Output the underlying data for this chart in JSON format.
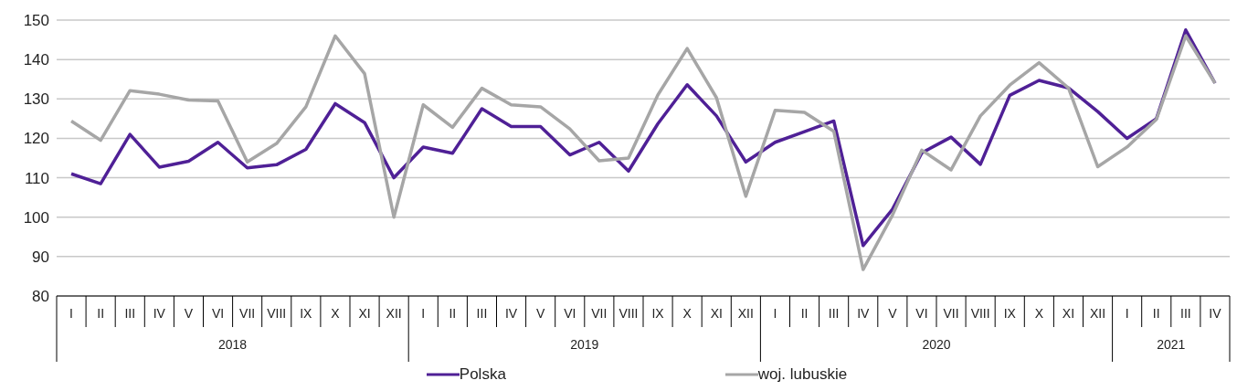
{
  "chart_data": {
    "type": "line",
    "categories": [
      "I",
      "II",
      "III",
      "IV",
      "V",
      "VI",
      "VII",
      "VIII",
      "IX",
      "X",
      "XI",
      "XII",
      "I",
      "II",
      "III",
      "IV",
      "V",
      "VI",
      "VII",
      "VIII",
      "IX",
      "X",
      "XI",
      "XII",
      "I",
      "II",
      "III",
      "IV",
      "V",
      "VI",
      "VII",
      "VIII",
      "IX",
      "X",
      "XI",
      "XII",
      "I",
      "II",
      "III",
      "IV"
    ],
    "annotations": [
      "2018",
      "2019",
      "2020",
      "2021"
    ],
    "series": [
      {
        "name": "Polska",
        "color": "#4f2096",
        "values": [
          111,
          108.5,
          121,
          112.7,
          114.2,
          119,
          112.5,
          113.3,
          117.2,
          128.8,
          124,
          110,
          117.8,
          116.2,
          127.5,
          123,
          123,
          115.8,
          119,
          111.7,
          123.7,
          133.6,
          125.7,
          114,
          119,
          121.7,
          124.4,
          92.8,
          102,
          116.3,
          120.3,
          113.4,
          130.9,
          134.7,
          132.8,
          126.8,
          120,
          125,
          147.5,
          134
        ]
      },
      {
        "name": "woj. lubuskie",
        "color": "#a6a6a6",
        "values": [
          124.4,
          119.5,
          132.1,
          131.2,
          129.7,
          129.5,
          114,
          118.7,
          128,
          146,
          136.4,
          100,
          128.5,
          122.8,
          132.7,
          128.5,
          128,
          122.4,
          114.3,
          115,
          131,
          142.8,
          130.3,
          105.3,
          127.1,
          126.6,
          121.8,
          86.7,
          100.5,
          117,
          112,
          125.7,
          133.5,
          139.2,
          132.8,
          112.8,
          117.8,
          124.8,
          146,
          134
        ]
      }
    ],
    "ylim": [
      80,
      150
    ],
    "yticks": [
      80,
      90,
      100,
      110,
      120,
      130,
      140,
      150
    ],
    "grid": "y",
    "legend": "bottom",
    "marker": "none",
    "line_style": "solid"
  }
}
